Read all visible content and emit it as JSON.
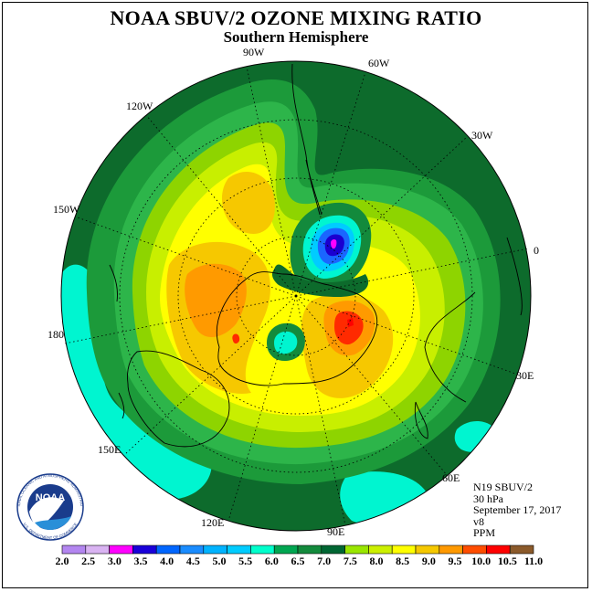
{
  "title": "NOAA SBUV/2 OZONE MIXING RATIO",
  "subtitle": "Southern Hemisphere",
  "info": {
    "satellite": "N19 SBUV/2",
    "level": "30 hPa",
    "date": "September 17, 2017",
    "version": "v8",
    "units": "PPM"
  },
  "logo": {
    "text": "NOAA",
    "ring_text_top": "NATIONAL OCEANIC AND ATMOSPHERIC ADMINISTRATION",
    "ring_text_bottom": "U.S. DEPARTMENT OF COMMERCE"
  },
  "longitude_labels": [
    "90W",
    "60W",
    "120W",
    "30W",
    "150W",
    "0",
    "180",
    "30E",
    "150E",
    "60E",
    "120E",
    "90E"
  ],
  "colorbar": {
    "ticks": [
      "2.0",
      "2.5",
      "3.0",
      "3.5",
      "4.0",
      "4.5",
      "5.0",
      "5.5",
      "6.0",
      "6.5",
      "7.0",
      "7.5",
      "8.0",
      "8.5",
      "9.0",
      "9.5",
      "10.0",
      "10.5",
      "11.0"
    ],
    "colors": [
      "#b386f0",
      "#d9b3f2",
      "#ff00ff",
      "#1a00d9",
      "#0066ff",
      "#1a8cff",
      "#00b3ff",
      "#00ccff",
      "#00ffcc",
      "#00a651",
      "#138a3c",
      "#006633",
      "#99e600",
      "#ccf000",
      "#ffff00",
      "#f5c800",
      "#ff9900",
      "#ff4d00",
      "#ff0000",
      "#8b5a2b"
    ]
  },
  "colors": {
    "outside": "#0d6b2c",
    "ring_6_5": "#1c9a3a",
    "green_7": "#2db54a",
    "green_7_5": "#8ed400",
    "yellowgreen_8": "#c8ef00",
    "yellow_8_5": "#ffff00",
    "gold_9": "#f6c800",
    "orange_9_5": "#ff9a00",
    "red_10": "#ff2a00",
    "cyan_6": "#00f5d0",
    "blue_4": "#1a66ff",
    "dblue_3_5": "#1a00d0",
    "magenta_3": "#ff00ff"
  }
}
